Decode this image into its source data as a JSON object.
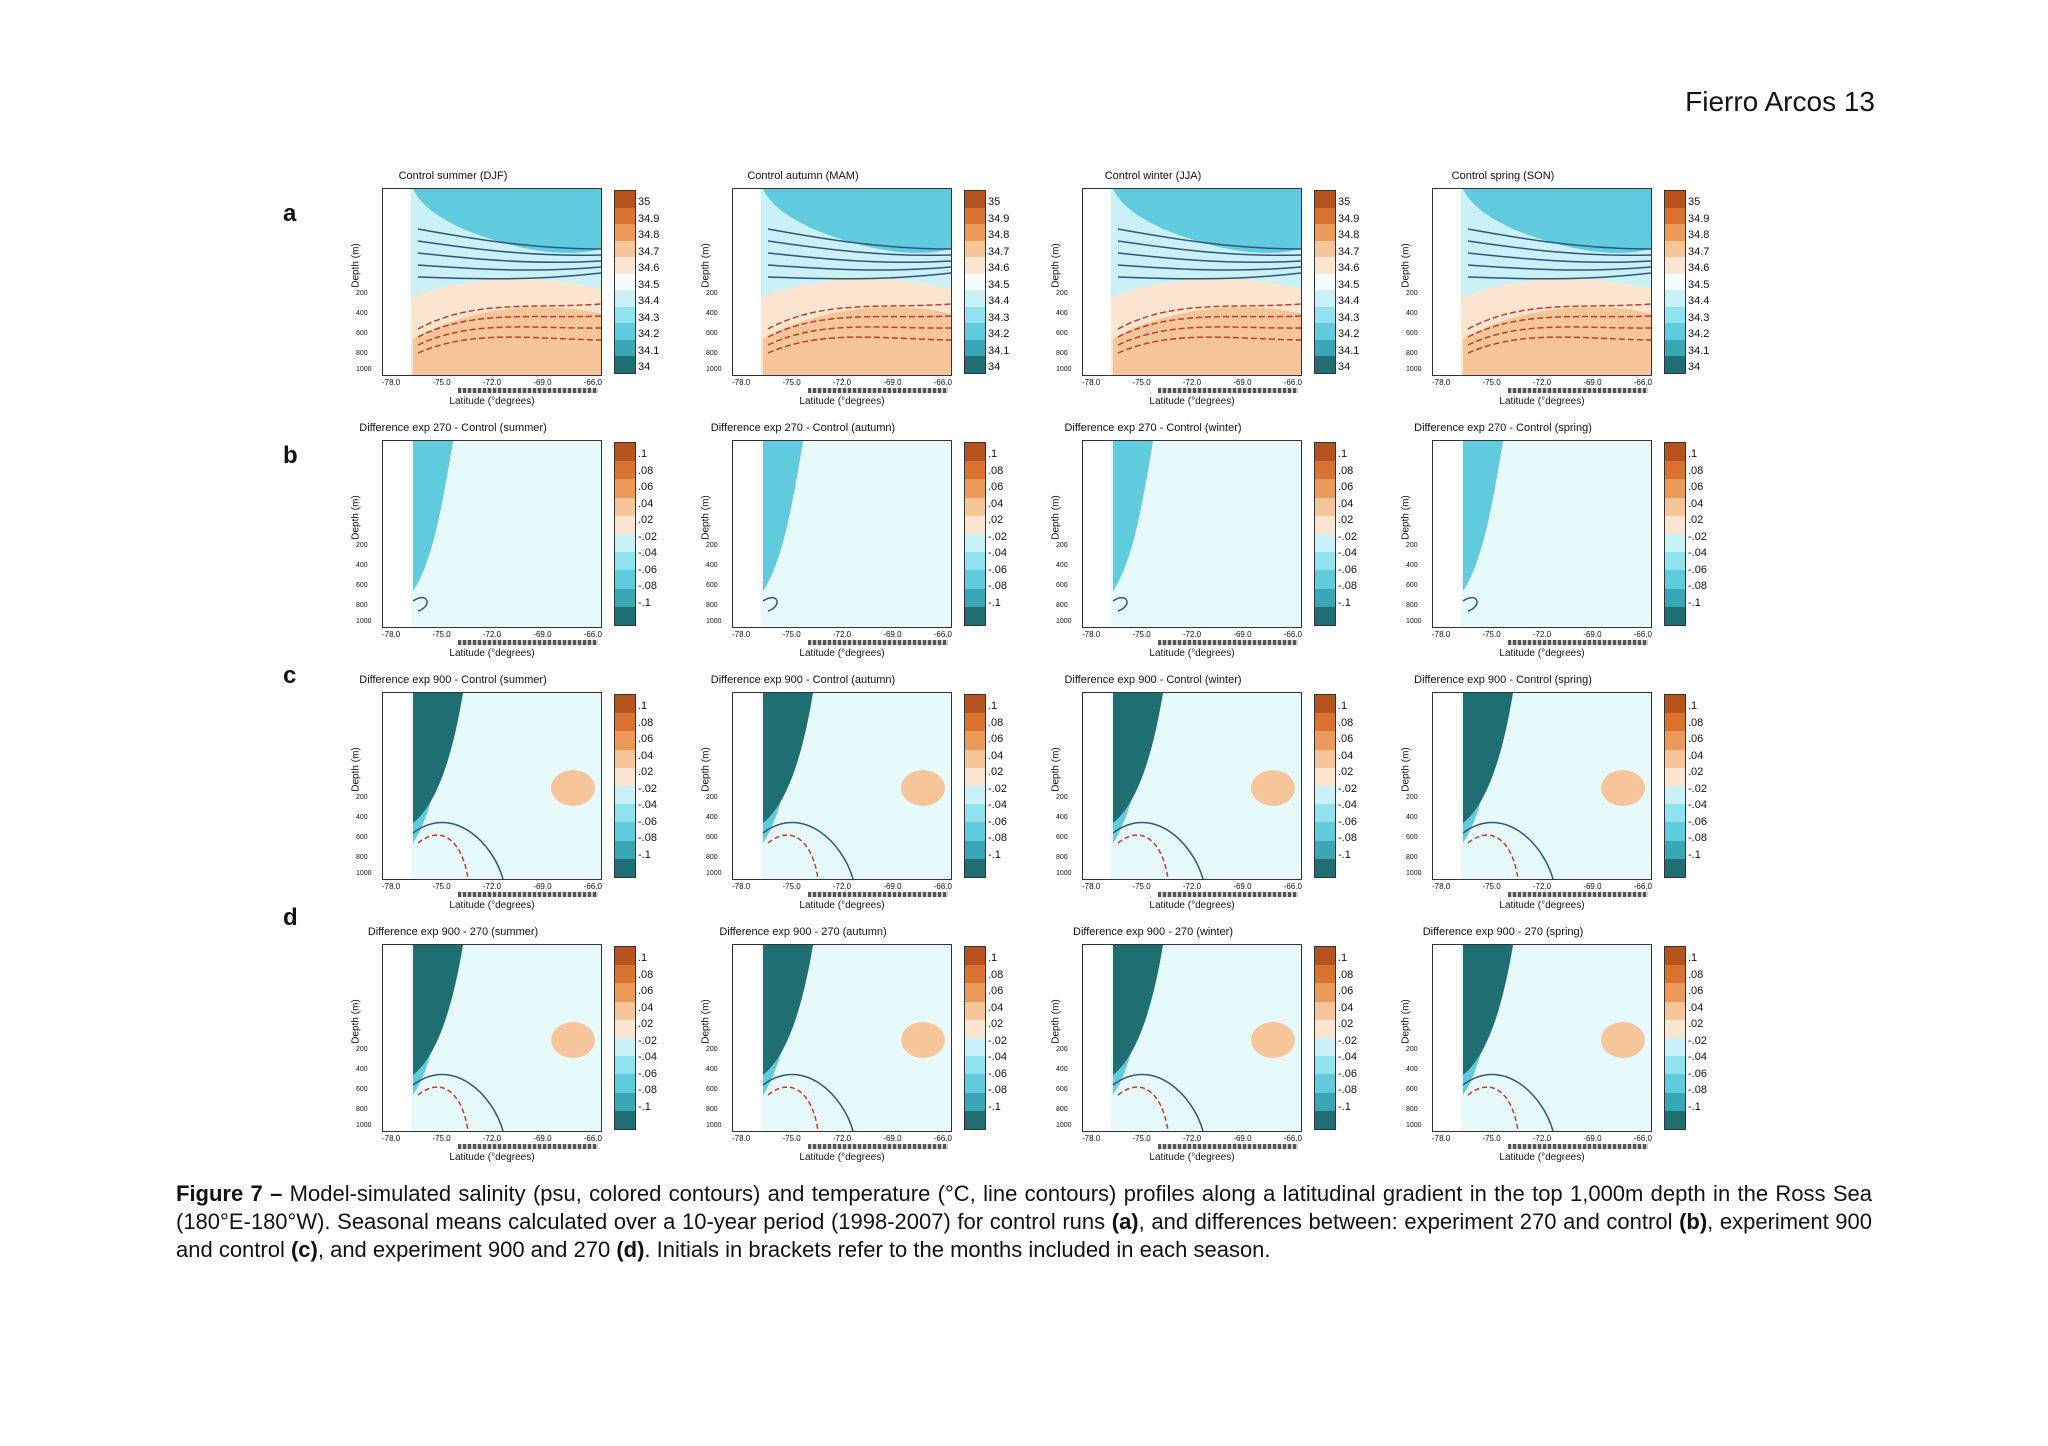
{
  "header": {
    "page_header": "Fierro Arcos 13"
  },
  "figure": {
    "rows": [
      {
        "letter": "a",
        "kind": "control",
        "titles": [
          "Control summer (DJF)",
          "Control autumn (MAM)",
          "Control winter (JJA)",
          "Control spring (SON)"
        ]
      },
      {
        "letter": "b",
        "kind": "diff",
        "titles": [
          "Difference exp 270 - Control (summer)",
          "Difference exp 270 - Control (autumn)",
          "Difference exp 270 - Control (winter)",
          "Difference exp 270 - Control (spring)"
        ]
      },
      {
        "letter": "c",
        "kind": "diff",
        "titles": [
          "Difference exp 900 - Control (summer)",
          "Difference exp 900 - Control (autumn)",
          "Difference exp 900 - Control (winter)",
          "Difference exp 900 - Control (spring)"
        ]
      },
      {
        "letter": "d",
        "kind": "diff",
        "titles": [
          "Difference exp 900 - 270 (summer)",
          "Difference exp 900 - 270 (autumn)",
          "Difference exp 900 - 270 (winter)",
          "Difference exp 900 - 270 (spring)"
        ]
      }
    ],
    "axis": {
      "ylabel": "Depth (m)",
      "xlabel": "Latitude (°degrees)",
      "xticks": [
        "-78.0",
        "-75.0",
        "-72.0",
        "-69.0",
        "-66.0"
      ],
      "yticks": [
        "200",
        "400",
        "600",
        "800",
        "1000"
      ]
    },
    "colorbars": {
      "control": [
        "35",
        "34.9",
        "34.8",
        "34.7",
        "34.6",
        "34.5",
        "34.4",
        "34.3",
        "34.2",
        "34.1",
        "34"
      ],
      "diff": [
        ".1",
        ".08",
        ".06",
        ".04",
        ".02",
        "-.02",
        "-.04",
        "-.06",
        "-.08",
        "-.1"
      ]
    },
    "colors": {
      "control": [
        "#b5521e",
        "#d9732f",
        "#eb9a5a",
        "#f6c59a",
        "#fbe5d0",
        "#f4fbfc",
        "#c9f1f6",
        "#8fe2ee",
        "#5fcbdc",
        "#3aa7b6",
        "#1f6f72"
      ],
      "diff": [
        "#b5521e",
        "#d9732f",
        "#eb9a5a",
        "#f6c59a",
        "#fbe5d0",
        "#c9f1f6",
        "#8fe2ee",
        "#5fcbdc",
        "#3aa7b6",
        "#1f6f72"
      ]
    }
  },
  "caption": {
    "label": "Figure 7 –",
    "t1": " Model-simulated salinity (psu, colored contours) and temperature (°C, line contours) profiles along a latitudinal gradient in the top 1,000m depth in the Ross Sea (180°E-180°W). Seasonal means calculated over a 10-year period (1998-2007) for control runs ",
    "a": "(a)",
    "t2": ", and differences between: experiment 270 and control ",
    "b": "(b)",
    "t3": ", experiment 900 and control ",
    "c": "(c)",
    "t4": ", and experiment 900 and 270 ",
    "d": "(d)",
    "t5": ". Initials in brackets refer to the months included in each season."
  }
}
